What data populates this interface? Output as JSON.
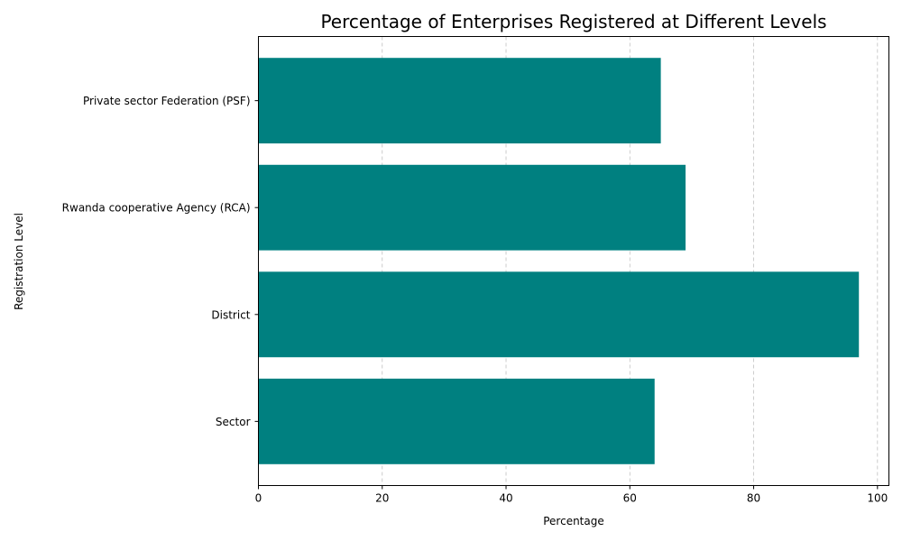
{
  "chart_data": {
    "type": "bar",
    "orientation": "horizontal",
    "title": "Percentage of Enterprises Registered at Different Levels",
    "xlabel": "Percentage",
    "ylabel": "Registration Level",
    "categories": [
      "Sector",
      "District",
      "Rwanda cooperative Agency (RCA)",
      "Private sector Federation (PSF)"
    ],
    "values": [
      64,
      97,
      69,
      65
    ],
    "xlim": [
      0,
      101.85
    ],
    "xticks": [
      "0",
      "20",
      "40",
      "60",
      "80",
      "100"
    ],
    "grid": "x-axis dashed",
    "bar_color": "#008080"
  }
}
